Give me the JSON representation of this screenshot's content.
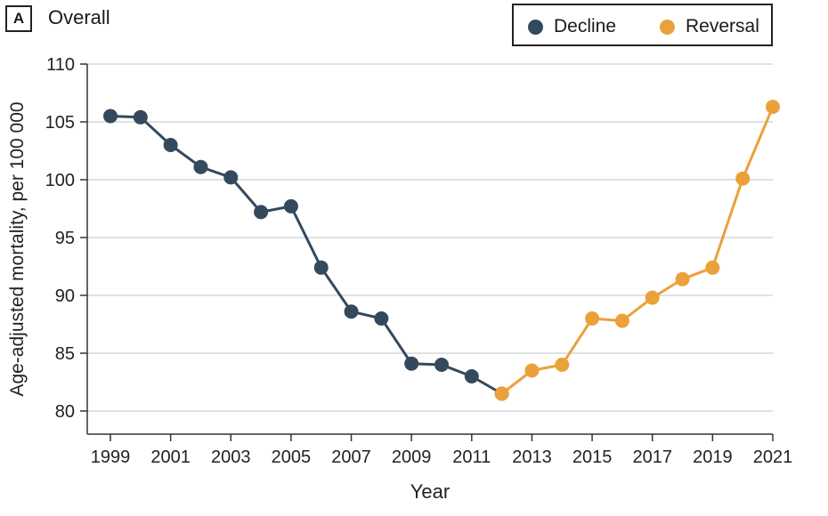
{
  "panel": {
    "label": "A",
    "title": "Overall"
  },
  "legend": {
    "items": [
      {
        "label": "Decline",
        "color": "#34495e"
      },
      {
        "label": "Reversal",
        "color": "#eba13a"
      }
    ]
  },
  "chart_data": {
    "type": "line",
    "title": "Overall",
    "xlabel": "Year",
    "ylabel": "Age-adjusted mortality, per 100 000",
    "xlim": [
      1999,
      2021
    ],
    "ylim": [
      78,
      110
    ],
    "x_ticks": [
      1999,
      2001,
      2003,
      2005,
      2007,
      2009,
      2011,
      2013,
      2015,
      2017,
      2019,
      2021
    ],
    "y_ticks": [
      80,
      85,
      90,
      95,
      100,
      105,
      110
    ],
    "grid": true,
    "series": [
      {
        "name": "Decline",
        "color": "#34495e",
        "x": [
          1999,
          2000,
          2001,
          2002,
          2003,
          2004,
          2005,
          2006,
          2007,
          2008,
          2009,
          2010,
          2011,
          2012
        ],
        "y": [
          105.5,
          105.4,
          103.0,
          101.1,
          100.2,
          97.2,
          97.7,
          92.4,
          88.6,
          88.0,
          84.1,
          84.0,
          83.0,
          81.5
        ]
      },
      {
        "name": "Reversal",
        "color": "#eba13a",
        "x": [
          2012,
          2013,
          2014,
          2015,
          2016,
          2017,
          2018,
          2019,
          2020,
          2021
        ],
        "y": [
          81.5,
          83.5,
          84.0,
          88.0,
          87.8,
          89.8,
          91.4,
          92.4,
          100.1,
          106.3
        ]
      }
    ]
  }
}
